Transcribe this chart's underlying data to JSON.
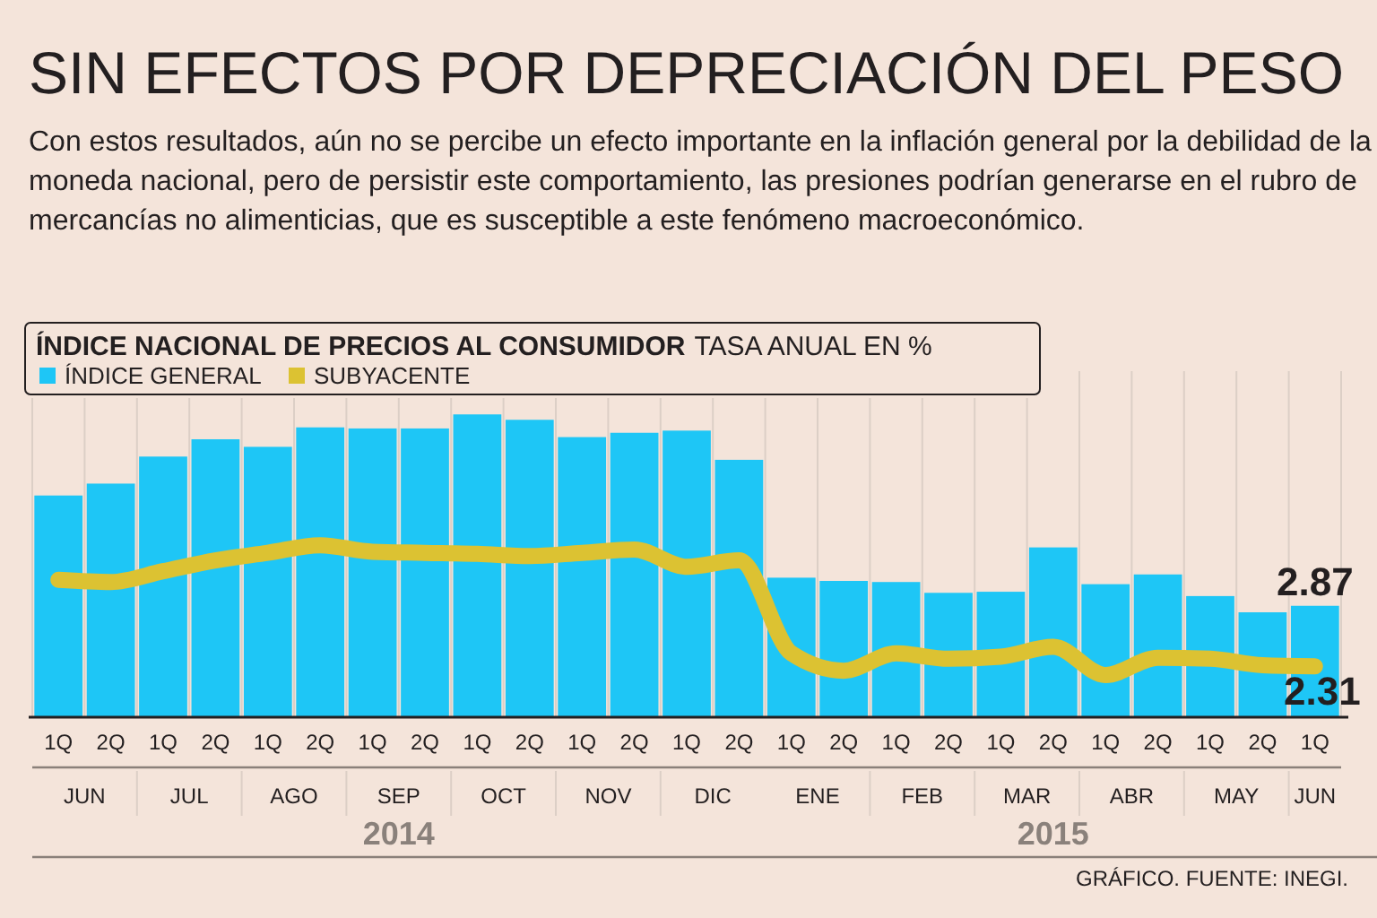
{
  "chart_data": {
    "type": "bar",
    "title": "SIN EFECTOS POR DEPRECIACIÓN DEL PESO",
    "subtitle": "Con estos resultados, aún no se percibe un efecto importante en la inflación general por la debilidad de la moneda nacional, pero de persistir este comportamiento, las presiones podrían generarse en el rubro de mercancías no alimenticias, que es susceptible a este fenómeno macroeconómico.",
    "legend_title": "ÍNDICE NACIONAL DE PRECIOS AL CONSUMIDOR",
    "ylabel": "TASA ANUAL EN %",
    "categories": [
      "1Q",
      "2Q",
      "1Q",
      "2Q",
      "1Q",
      "2Q",
      "1Q",
      "2Q",
      "1Q",
      "2Q",
      "1Q",
      "2Q",
      "1Q",
      "2Q",
      "1Q",
      "2Q",
      "1Q",
      "2Q",
      "1Q",
      "2Q",
      "1Q",
      "2Q",
      "1Q",
      "2Q",
      "1Q"
    ],
    "ylim": [
      1.84,
      5.04
    ],
    "series": [
      {
        "name": "ÍNDICE GENERAL",
        "color": "#1ec6f6",
        "values": [
          3.89,
          4.0,
          4.25,
          4.41,
          4.34,
          4.52,
          4.51,
          4.51,
          4.64,
          4.59,
          4.43,
          4.47,
          4.49,
          4.22,
          3.13,
          3.1,
          3.09,
          2.99,
          3.0,
          3.41,
          3.07,
          3.16,
          2.96,
          2.81,
          2.87
        ],
        "value_labels": [
          null,
          null,
          null,
          null,
          null,
          null,
          null,
          null,
          null,
          null,
          null,
          null,
          null,
          null,
          null,
          null,
          null,
          null,
          null,
          null,
          null,
          null,
          null,
          null,
          "2.87"
        ]
      },
      {
        "name": "SUBYACENTE",
        "type": "line",
        "color": "#dcc232",
        "values": [
          3.11,
          3.09,
          3.19,
          3.29,
          3.36,
          3.43,
          3.37,
          3.36,
          3.35,
          3.33,
          3.36,
          3.39,
          3.23,
          3.29,
          2.43,
          2.27,
          2.43,
          2.38,
          2.4,
          2.49,
          2.23,
          2.39,
          2.38,
          2.32,
          2.31
        ],
        "value_labels": [
          null,
          null,
          null,
          null,
          null,
          null,
          null,
          null,
          null,
          null,
          null,
          null,
          null,
          null,
          null,
          null,
          null,
          null,
          null,
          null,
          null,
          null,
          null,
          null,
          "2.31"
        ]
      }
    ],
    "grid": "x",
    "legend": "top left",
    "annotations": [
      "JUN",
      "JUL",
      "AGO",
      "SEP",
      "OCT",
      "NOV",
      "DIC",
      "ENE",
      "FEB",
      "MAR",
      "ABR",
      "MAY",
      "JUN",
      "2014",
      "2015",
      "GRÁFICO. FUENTE: INEGI."
    ]
  }
}
